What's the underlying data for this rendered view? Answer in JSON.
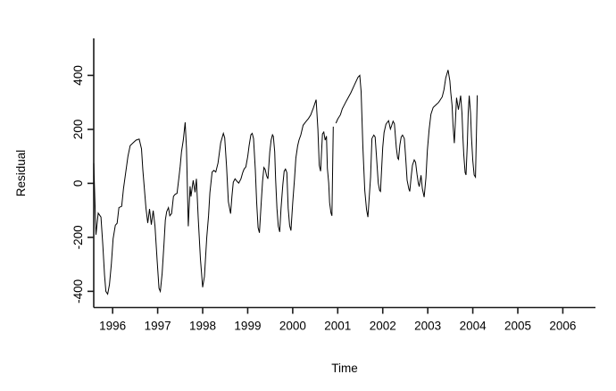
{
  "window": {
    "background": "#ffffff"
  },
  "chart_data": {
    "type": "line",
    "title": "",
    "xlabel": "Time",
    "ylabel": "Residual",
    "x_ticks": [
      1996,
      1997,
      1998,
      1999,
      2000,
      2001,
      2002,
      2003,
      2004,
      2005,
      2006
    ],
    "y_ticks": [
      -400,
      -200,
      0,
      200,
      400
    ],
    "xlim": [
      1995.58,
      2006.725
    ],
    "ylim": [
      -460,
      537
    ],
    "grid": false,
    "legend": "none",
    "line_color": "#000000",
    "axis_color": "#1a1a1a",
    "series": [
      {
        "name": "residual",
        "segments": [
          [
            [
              1995.58,
              75
            ],
            [
              1995.63,
              -190
            ],
            [
              1995.68,
              -110
            ],
            [
              1995.74,
              -125
            ],
            [
              1995.78,
              -225
            ],
            [
              1995.82,
              -340
            ],
            [
              1995.85,
              -400
            ],
            [
              1995.89,
              -410
            ],
            [
              1995.93,
              -375
            ],
            [
              1995.97,
              -300
            ],
            [
              1996.01,
              -205
            ],
            [
              1996.06,
              -155
            ],
            [
              1996.1,
              -148
            ],
            [
              1996.14,
              -90
            ],
            [
              1996.2,
              -85
            ],
            [
              1996.24,
              -20
            ],
            [
              1996.29,
              40
            ],
            [
              1996.34,
              100
            ],
            [
              1996.39,
              140
            ],
            [
              1996.44,
              148
            ],
            [
              1996.52,
              160
            ],
            [
              1996.59,
              164
            ],
            [
              1996.64,
              128
            ],
            [
              1996.67,
              50
            ],
            [
              1996.74,
              -92
            ],
            [
              1996.78,
              -147
            ],
            [
              1996.82,
              -95
            ],
            [
              1996.86,
              -153
            ],
            [
              1996.9,
              -101
            ],
            [
              1996.94,
              -158
            ],
            [
              1996.99,
              -290
            ],
            [
              1997.03,
              -389
            ],
            [
              1997.06,
              -400
            ],
            [
              1997.1,
              -334
            ],
            [
              1997.14,
              -224
            ],
            [
              1997.17,
              -136
            ],
            [
              1997.2,
              -105
            ],
            [
              1997.24,
              -90
            ],
            [
              1997.27,
              -120
            ],
            [
              1997.31,
              -112
            ],
            [
              1997.35,
              -48
            ],
            [
              1997.39,
              -40
            ],
            [
              1997.43,
              -37
            ],
            [
              1997.47,
              18
            ],
            [
              1997.5,
              62
            ],
            [
              1997.53,
              117
            ],
            [
              1997.57,
              160
            ],
            [
              1997.61,
              226
            ],
            [
              1997.64,
              128
            ],
            [
              1997.68,
              -159
            ],
            [
              1997.72,
              -11
            ],
            [
              1997.74,
              -49
            ],
            [
              1997.79,
              11
            ],
            [
              1997.83,
              -33
            ],
            [
              1997.86,
              17
            ],
            [
              1997.9,
              -126
            ],
            [
              1997.95,
              -280
            ],
            [
              1998.0,
              -385
            ],
            [
              1998.04,
              -345
            ],
            [
              1998.09,
              -200
            ],
            [
              1998.13,
              -120
            ],
            [
              1998.16,
              -35
            ],
            [
              1998.21,
              42
            ],
            [
              1998.25,
              48
            ],
            [
              1998.29,
              42
            ],
            [
              1998.34,
              75
            ],
            [
              1998.4,
              150
            ],
            [
              1998.46,
              185
            ],
            [
              1998.49,
              169
            ],
            [
              1998.53,
              61
            ],
            [
              1998.57,
              -68
            ],
            [
              1998.62,
              -112
            ],
            [
              1998.65,
              -48
            ],
            [
              1998.68,
              4
            ],
            [
              1998.72,
              17
            ],
            [
              1998.76,
              8
            ],
            [
              1998.8,
              1
            ],
            [
              1998.85,
              17
            ],
            [
              1998.89,
              40
            ],
            [
              1998.92,
              53
            ],
            [
              1998.96,
              61
            ],
            [
              1999.0,
              100
            ],
            [
              1999.03,
              139
            ],
            [
              1999.07,
              180
            ],
            [
              1999.1,
              185
            ],
            [
              1999.13,
              166
            ],
            [
              1999.17,
              50
            ],
            [
              1999.2,
              -71
            ],
            [
              1999.23,
              -164
            ],
            [
              1999.26,
              -183
            ],
            [
              1999.3,
              -71
            ],
            [
              1999.33,
              7
            ],
            [
              1999.36,
              59
            ],
            [
              1999.39,
              51
            ],
            [
              1999.42,
              28
            ],
            [
              1999.45,
              17
            ],
            [
              1999.49,
              117
            ],
            [
              1999.52,
              160
            ],
            [
              1999.55,
              180
            ],
            [
              1999.57,
              174
            ],
            [
              1999.6,
              117
            ],
            [
              1999.62,
              17
            ],
            [
              1999.65,
              -92
            ],
            [
              1999.68,
              -158
            ],
            [
              1999.71,
              -180
            ],
            [
              1999.74,
              -92
            ],
            [
              1999.78,
              -5
            ],
            [
              1999.81,
              45
            ],
            [
              1999.84,
              53
            ],
            [
              1999.87,
              40
            ],
            [
              1999.9,
              -92
            ],
            [
              1999.93,
              -156
            ],
            [
              1999.96,
              -175
            ],
            [
              2000.0,
              -71
            ],
            [
              2000.04,
              17
            ],
            [
              2000.07,
              94
            ],
            [
              2000.11,
              139
            ],
            [
              2000.14,
              160
            ],
            [
              2000.18,
              180
            ],
            [
              2000.23,
              215
            ],
            [
              2000.27,
              224
            ],
            [
              2000.31,
              232
            ],
            [
              2000.35,
              240
            ],
            [
              2000.4,
              254
            ],
            [
              2000.46,
              280
            ],
            [
              2000.52,
              310
            ],
            [
              2000.56,
              200
            ],
            [
              2000.59,
              67
            ],
            [
              2000.62,
              45
            ],
            [
              2000.66,
              183
            ],
            [
              2000.69,
              190
            ],
            [
              2000.72,
              160
            ],
            [
              2000.75,
              175
            ],
            [
              2000.77,
              56
            ],
            [
              2000.8,
              1
            ],
            [
              2000.82,
              -71
            ],
            [
              2000.85,
              -109
            ],
            [
              2000.87,
              -120
            ],
            [
              2000.9,
              210
            ]
          ],
          [
            [
              2000.96,
              223
            ],
            [
              2001.0,
              238
            ],
            [
              2001.06,
              254
            ],
            [
              2001.1,
              276
            ],
            [
              2001.19,
              305
            ],
            [
              2001.29,
              335
            ],
            [
              2001.38,
              368
            ],
            [
              2001.45,
              393
            ],
            [
              2001.49,
              400
            ],
            [
              2001.52,
              340
            ],
            [
              2001.56,
              133
            ],
            [
              2001.6,
              -26
            ],
            [
              2001.64,
              -98
            ],
            [
              2001.67,
              -125
            ],
            [
              2001.73,
              23
            ],
            [
              2001.76,
              166
            ],
            [
              2001.8,
              179
            ],
            [
              2001.83,
              172
            ],
            [
              2001.86,
              100
            ],
            [
              2001.9,
              1
            ],
            [
              2001.93,
              -26
            ],
            [
              2001.95,
              -30
            ],
            [
              2002.0,
              133
            ],
            [
              2002.03,
              188
            ],
            [
              2002.07,
              219
            ],
            [
              2002.1,
              226
            ],
            [
              2002.13,
              232
            ],
            [
              2002.17,
              201
            ],
            [
              2002.2,
              215
            ],
            [
              2002.23,
              230
            ],
            [
              2002.26,
              221
            ],
            [
              2002.3,
              133
            ],
            [
              2002.33,
              94
            ],
            [
              2002.35,
              89
            ],
            [
              2002.38,
              142
            ],
            [
              2002.41,
              172
            ],
            [
              2002.44,
              179
            ],
            [
              2002.48,
              166
            ],
            [
              2002.51,
              91
            ],
            [
              2002.54,
              12
            ],
            [
              2002.58,
              -21
            ],
            [
              2002.6,
              -30
            ],
            [
              2002.63,
              23
            ],
            [
              2002.66,
              67
            ],
            [
              2002.7,
              87
            ],
            [
              2002.73,
              78
            ],
            [
              2002.76,
              34
            ],
            [
              2002.79,
              0
            ],
            [
              2002.81,
              -12
            ],
            [
              2002.85,
              30
            ],
            [
              2002.88,
              -20
            ],
            [
              2002.92,
              -51
            ],
            [
              2002.96,
              20
            ],
            [
              2002.99,
              122
            ],
            [
              2003.03,
              200
            ],
            [
              2003.07,
              256
            ],
            [
              2003.12,
              281
            ],
            [
              2003.19,
              292
            ],
            [
              2003.24,
              300
            ],
            [
              2003.32,
              320
            ],
            [
              2003.36,
              347
            ],
            [
              2003.4,
              391
            ],
            [
              2003.45,
              420
            ],
            [
              2003.49,
              380
            ],
            [
              2003.51,
              337
            ],
            [
              2003.54,
              288
            ],
            [
              2003.56,
              218
            ],
            [
              2003.59,
              149
            ],
            [
              2003.62,
              250
            ],
            [
              2003.64,
              317
            ],
            [
              2003.68,
              273
            ],
            [
              2003.73,
              325
            ],
            [
              2003.76,
              259
            ],
            [
              2003.78,
              172
            ],
            [
              2003.8,
              106
            ],
            [
              2003.83,
              40
            ],
            [
              2003.85,
              31
            ],
            [
              2003.88,
              149
            ],
            [
              2003.9,
              265
            ],
            [
              2003.92,
              325
            ],
            [
              2003.95,
              259
            ],
            [
              2003.97,
              172
            ],
            [
              2004.0,
              84
            ],
            [
              2004.03,
              31
            ],
            [
              2004.06,
              23
            ],
            [
              2004.1,
              326
            ]
          ]
        ]
      }
    ]
  }
}
